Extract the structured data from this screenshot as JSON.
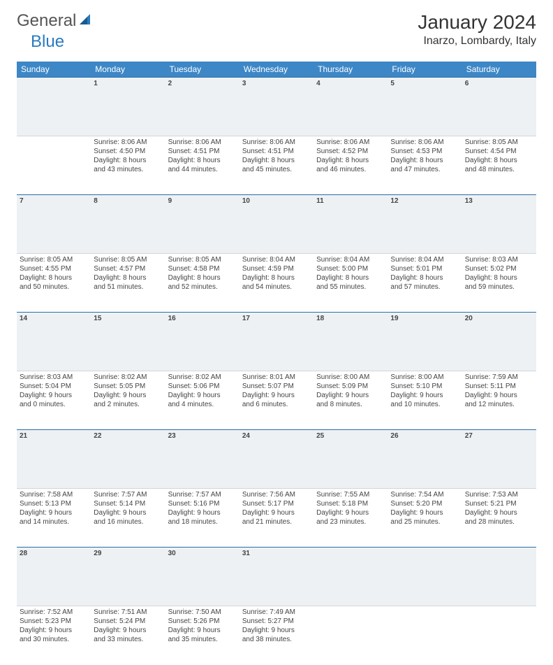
{
  "logo": {
    "text1": "General",
    "text2": "Blue"
  },
  "title": "January 2024",
  "location": "Inarzo, Lombardy, Italy",
  "colors": {
    "header_bg": "#3d87c7",
    "header_text": "#ffffff",
    "daynum_bg": "#eef1f3",
    "daynum_border_top": "#2a6ea8",
    "daynum_text": "#556677",
    "body_text": "#444444"
  },
  "weekdays": [
    "Sunday",
    "Monday",
    "Tuesday",
    "Wednesday",
    "Thursday",
    "Friday",
    "Saturday"
  ],
  "weeks": [
    {
      "nums": [
        "",
        "1",
        "2",
        "3",
        "4",
        "5",
        "6"
      ],
      "cells": [
        null,
        {
          "sunrise": "Sunrise: 8:06 AM",
          "sunset": "Sunset: 4:50 PM",
          "d1": "Daylight: 8 hours",
          "d2": "and 43 minutes."
        },
        {
          "sunrise": "Sunrise: 8:06 AM",
          "sunset": "Sunset: 4:51 PM",
          "d1": "Daylight: 8 hours",
          "d2": "and 44 minutes."
        },
        {
          "sunrise": "Sunrise: 8:06 AM",
          "sunset": "Sunset: 4:51 PM",
          "d1": "Daylight: 8 hours",
          "d2": "and 45 minutes."
        },
        {
          "sunrise": "Sunrise: 8:06 AM",
          "sunset": "Sunset: 4:52 PM",
          "d1": "Daylight: 8 hours",
          "d2": "and 46 minutes."
        },
        {
          "sunrise": "Sunrise: 8:06 AM",
          "sunset": "Sunset: 4:53 PM",
          "d1": "Daylight: 8 hours",
          "d2": "and 47 minutes."
        },
        {
          "sunrise": "Sunrise: 8:05 AM",
          "sunset": "Sunset: 4:54 PM",
          "d1": "Daylight: 8 hours",
          "d2": "and 48 minutes."
        }
      ]
    },
    {
      "nums": [
        "7",
        "8",
        "9",
        "10",
        "11",
        "12",
        "13"
      ],
      "cells": [
        {
          "sunrise": "Sunrise: 8:05 AM",
          "sunset": "Sunset: 4:55 PM",
          "d1": "Daylight: 8 hours",
          "d2": "and 50 minutes."
        },
        {
          "sunrise": "Sunrise: 8:05 AM",
          "sunset": "Sunset: 4:57 PM",
          "d1": "Daylight: 8 hours",
          "d2": "and 51 minutes."
        },
        {
          "sunrise": "Sunrise: 8:05 AM",
          "sunset": "Sunset: 4:58 PM",
          "d1": "Daylight: 8 hours",
          "d2": "and 52 minutes."
        },
        {
          "sunrise": "Sunrise: 8:04 AM",
          "sunset": "Sunset: 4:59 PM",
          "d1": "Daylight: 8 hours",
          "d2": "and 54 minutes."
        },
        {
          "sunrise": "Sunrise: 8:04 AM",
          "sunset": "Sunset: 5:00 PM",
          "d1": "Daylight: 8 hours",
          "d2": "and 55 minutes."
        },
        {
          "sunrise": "Sunrise: 8:04 AM",
          "sunset": "Sunset: 5:01 PM",
          "d1": "Daylight: 8 hours",
          "d2": "and 57 minutes."
        },
        {
          "sunrise": "Sunrise: 8:03 AM",
          "sunset": "Sunset: 5:02 PM",
          "d1": "Daylight: 8 hours",
          "d2": "and 59 minutes."
        }
      ]
    },
    {
      "nums": [
        "14",
        "15",
        "16",
        "17",
        "18",
        "19",
        "20"
      ],
      "cells": [
        {
          "sunrise": "Sunrise: 8:03 AM",
          "sunset": "Sunset: 5:04 PM",
          "d1": "Daylight: 9 hours",
          "d2": "and 0 minutes."
        },
        {
          "sunrise": "Sunrise: 8:02 AM",
          "sunset": "Sunset: 5:05 PM",
          "d1": "Daylight: 9 hours",
          "d2": "and 2 minutes."
        },
        {
          "sunrise": "Sunrise: 8:02 AM",
          "sunset": "Sunset: 5:06 PM",
          "d1": "Daylight: 9 hours",
          "d2": "and 4 minutes."
        },
        {
          "sunrise": "Sunrise: 8:01 AM",
          "sunset": "Sunset: 5:07 PM",
          "d1": "Daylight: 9 hours",
          "d2": "and 6 minutes."
        },
        {
          "sunrise": "Sunrise: 8:00 AM",
          "sunset": "Sunset: 5:09 PM",
          "d1": "Daylight: 9 hours",
          "d2": "and 8 minutes."
        },
        {
          "sunrise": "Sunrise: 8:00 AM",
          "sunset": "Sunset: 5:10 PM",
          "d1": "Daylight: 9 hours",
          "d2": "and 10 minutes."
        },
        {
          "sunrise": "Sunrise: 7:59 AM",
          "sunset": "Sunset: 5:11 PM",
          "d1": "Daylight: 9 hours",
          "d2": "and 12 minutes."
        }
      ]
    },
    {
      "nums": [
        "21",
        "22",
        "23",
        "24",
        "25",
        "26",
        "27"
      ],
      "cells": [
        {
          "sunrise": "Sunrise: 7:58 AM",
          "sunset": "Sunset: 5:13 PM",
          "d1": "Daylight: 9 hours",
          "d2": "and 14 minutes."
        },
        {
          "sunrise": "Sunrise: 7:57 AM",
          "sunset": "Sunset: 5:14 PM",
          "d1": "Daylight: 9 hours",
          "d2": "and 16 minutes."
        },
        {
          "sunrise": "Sunrise: 7:57 AM",
          "sunset": "Sunset: 5:16 PM",
          "d1": "Daylight: 9 hours",
          "d2": "and 18 minutes."
        },
        {
          "sunrise": "Sunrise: 7:56 AM",
          "sunset": "Sunset: 5:17 PM",
          "d1": "Daylight: 9 hours",
          "d2": "and 21 minutes."
        },
        {
          "sunrise": "Sunrise: 7:55 AM",
          "sunset": "Sunset: 5:18 PM",
          "d1": "Daylight: 9 hours",
          "d2": "and 23 minutes."
        },
        {
          "sunrise": "Sunrise: 7:54 AM",
          "sunset": "Sunset: 5:20 PM",
          "d1": "Daylight: 9 hours",
          "d2": "and 25 minutes."
        },
        {
          "sunrise": "Sunrise: 7:53 AM",
          "sunset": "Sunset: 5:21 PM",
          "d1": "Daylight: 9 hours",
          "d2": "and 28 minutes."
        }
      ]
    },
    {
      "nums": [
        "28",
        "29",
        "30",
        "31",
        "",
        "",
        ""
      ],
      "cells": [
        {
          "sunrise": "Sunrise: 7:52 AM",
          "sunset": "Sunset: 5:23 PM",
          "d1": "Daylight: 9 hours",
          "d2": "and 30 minutes."
        },
        {
          "sunrise": "Sunrise: 7:51 AM",
          "sunset": "Sunset: 5:24 PM",
          "d1": "Daylight: 9 hours",
          "d2": "and 33 minutes."
        },
        {
          "sunrise": "Sunrise: 7:50 AM",
          "sunset": "Sunset: 5:26 PM",
          "d1": "Daylight: 9 hours",
          "d2": "and 35 minutes."
        },
        {
          "sunrise": "Sunrise: 7:49 AM",
          "sunset": "Sunset: 5:27 PM",
          "d1": "Daylight: 9 hours",
          "d2": "and 38 minutes."
        },
        null,
        null,
        null
      ]
    }
  ]
}
